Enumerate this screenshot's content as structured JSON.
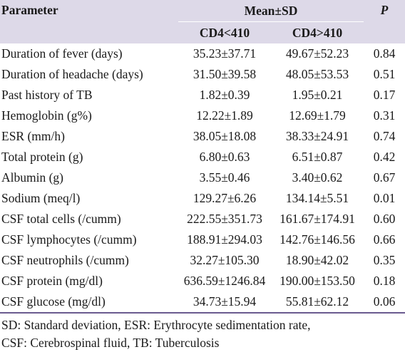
{
  "header": {
    "parameter": "Parameter",
    "mean_sd": "Mean±SD",
    "p": "P",
    "group_low": "CD4<410",
    "group_high": "CD4>410"
  },
  "rows": [
    {
      "parameter": "Duration of fever (days)",
      "low": "35.23±37.71",
      "high": "49.67±52.23",
      "p": "0.84"
    },
    {
      "parameter": "Duration of headache (days)",
      "low": "31.50±39.58",
      "high": "48.05±53.53",
      "p": "0.51"
    },
    {
      "parameter": "Past history of TB",
      "low": "1.82±0.39",
      "high": "1.95±0.21",
      "p": "0.17"
    },
    {
      "parameter": "Hemoglobin (g%)",
      "low": "12.22±1.89",
      "high": "12.69±1.79",
      "p": "0.31"
    },
    {
      "parameter": "ESR (mm/h)",
      "low": "38.05±18.08",
      "high": "38.33±24.91",
      "p": "0.74"
    },
    {
      "parameter": "Total protein (g)",
      "low": "6.80±0.63",
      "high": "6.51±0.87",
      "p": "0.42"
    },
    {
      "parameter": "Albumin (g)",
      "low": "3.55±0.46",
      "high": "3.40±0.62",
      "p": "0.67"
    },
    {
      "parameter": "Sodium (meq/l)",
      "low": "129.27±6.26",
      "high": "134.14±5.51",
      "p": "0.01"
    },
    {
      "parameter": "CSF total cells (/cumm)",
      "low": "222.55±351.73",
      "high": "161.67±174.91",
      "p": "0.60"
    },
    {
      "parameter": "CSF lymphocytes (/cumm)",
      "low": "188.91±294.03",
      "high": "142.76±146.56",
      "p": "0.66"
    },
    {
      "parameter": "CSF neutrophils (/cumm)",
      "low": "32.27±105.30",
      "high": "18.90±42.02",
      "p": "0.35"
    },
    {
      "parameter": "CSF protein (mg/dl)",
      "low": "636.59±1246.84",
      "high": "190.00±153.50",
      "p": "0.18"
    },
    {
      "parameter": "CSF glucose (mg/dl)",
      "low": "34.73±15.94",
      "high": "55.81±62.12",
      "p": "0.06"
    }
  ],
  "footnote": {
    "line1": "SD: Standard deviation, ESR: Erythrocyte sedimentation rate,",
    "line2": "CSF: Cerebrospinal fluid, TB: Tuberculosis"
  },
  "colors": {
    "header_bg": "#ddd9e8",
    "rule": "#6a5b8f",
    "text": "#1a1a1a"
  }
}
